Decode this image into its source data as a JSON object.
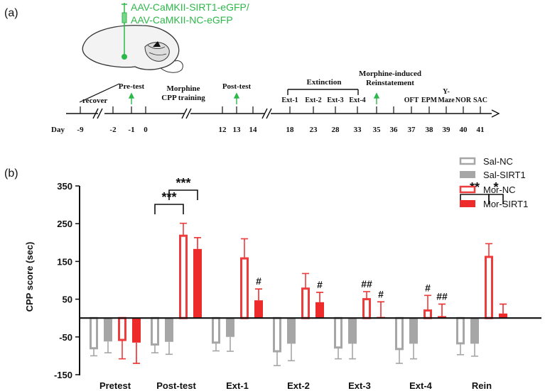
{
  "panel_a": {
    "label": "(a)",
    "virus_lines": [
      "AAV-CaMKII-SIRT1-eGFP/",
      "AAV-CaMKII-NC-eGFP"
    ],
    "day_label": "Day",
    "days": [
      "-9",
      "-2",
      "-1",
      "0",
      "12",
      "13",
      "14",
      "18",
      "23",
      "28",
      "33",
      "35",
      "36",
      "37",
      "38",
      "39",
      "40",
      "41"
    ],
    "events": {
      "recover": "recover",
      "pretest": "Pre-test",
      "morphine_training_1": "Morphine",
      "morphine_training_2": "CPP training",
      "posttest": "Post-test",
      "extinction": "Extinction",
      "reinstatement_1": "Morphine-induced",
      "reinstatement_2": "Reinstatement",
      "ext1": "Ext-1",
      "ext2": "Ext-2",
      "ext3": "Ext-3",
      "ext4": "Ext-4",
      "oft": "OFT",
      "epm": "EPM",
      "ymaze_1": "Y-",
      "ymaze_2": "Maze",
      "nor": "NOR",
      "sac": "SAC"
    },
    "colors": {
      "virus": "#2db84a",
      "arrow": "#2db84a"
    }
  },
  "chart_data": {
    "type": "bar",
    "panel_label": "(b)",
    "ylabel": "CPP score (sec)",
    "ylim": [
      -150,
      350
    ],
    "yticks": [
      -150,
      -50,
      50,
      150,
      250,
      350
    ],
    "categories": [
      "Pretest",
      "Post-test",
      "Ext-1",
      "Ext-2",
      "Ext-3",
      "Ext-4",
      "Rein"
    ],
    "series": [
      {
        "name": "Sal-NC",
        "style": "outline",
        "color": "#a6a6a6",
        "values": [
          -80,
          -70,
          -65,
          -88,
          -78,
          -82,
          -67
        ],
        "errors": [
          20,
          22,
          22,
          38,
          30,
          38,
          30
        ]
      },
      {
        "name": "Sal-SIRT1",
        "style": "filled",
        "color": "#a6a6a6",
        "values": [
          -62,
          -63,
          -50,
          -68,
          -68,
          -68,
          -68
        ],
        "errors": [
          30,
          33,
          38,
          45,
          40,
          40,
          33
        ]
      },
      {
        "name": "Mor-NC",
        "style": "outline",
        "color": "#ee3b3b",
        "values": [
          -58,
          218,
          158,
          78,
          50,
          20,
          162
        ],
        "errors": [
          50,
          33,
          52,
          40,
          20,
          40,
          35
        ]
      },
      {
        "name": "Mor-SIRT1",
        "style": "filled",
        "color": "#ee2b2b",
        "values": [
          -65,
          183,
          47,
          42,
          3,
          5,
          12
        ],
        "errors": [
          55,
          30,
          30,
          26,
          40,
          32,
          25
        ]
      }
    ],
    "annotations": [
      {
        "text": "***",
        "type": "bracket",
        "category": "Post-test",
        "from_series": 0,
        "to_series": 2,
        "level": 1
      },
      {
        "text": "***",
        "type": "bracket",
        "category": "Post-test",
        "from_series": 1,
        "to_series": 3,
        "level": 2
      },
      {
        "text": "**",
        "type": "bracket",
        "category": "Rein",
        "from_series": 0,
        "to_series": 2,
        "level": 1
      },
      {
        "text": "*",
        "type": "bracket",
        "category": "Rein",
        "from_series": 2,
        "to_series": 3,
        "level": 1
      },
      {
        "text": "#",
        "type": "mark",
        "category": "Ext-1",
        "series": 3
      },
      {
        "text": "#",
        "type": "mark",
        "category": "Ext-2",
        "series": 3
      },
      {
        "text": "##",
        "type": "mark",
        "category": "Ext-3",
        "series": 2
      },
      {
        "text": "#",
        "type": "mark",
        "category": "Ext-3",
        "series": 3
      },
      {
        "text": "#",
        "type": "mark",
        "category": "Ext-4",
        "series": 2
      },
      {
        "text": "##",
        "type": "mark",
        "category": "Ext-4",
        "series": 3
      }
    ]
  }
}
